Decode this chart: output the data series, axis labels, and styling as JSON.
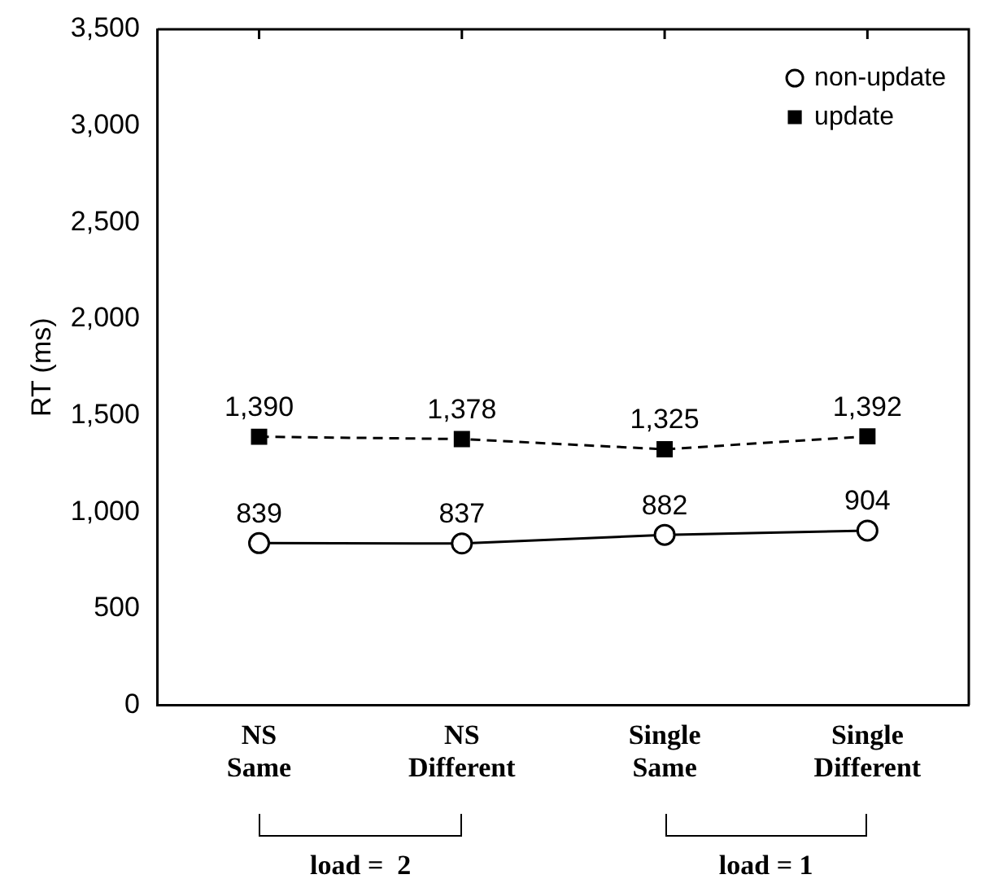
{
  "chart_data": {
    "type": "line",
    "ylabel": "RT (ms)",
    "categories": [
      "NS\nSame",
      "NS\nDifferent",
      "Single\nSame",
      "Single\nDifferent"
    ],
    "series": [
      {
        "name": "non-update",
        "color": "#000000",
        "marker": "circle",
        "line_style": "solid",
        "values": [
          839,
          837,
          882,
          904
        ],
        "value_labels": [
          "839",
          "837",
          "882",
          "904"
        ]
      },
      {
        "name": "update",
        "color": "#000000",
        "marker": "square",
        "line_style": "dashed",
        "values": [
          1390,
          1378,
          1325,
          1392
        ],
        "value_labels": [
          "1,390",
          "1,378",
          "1,325",
          "1,392"
        ]
      }
    ],
    "ylim": [
      0,
      3500
    ],
    "yticks": [
      {
        "value": 0,
        "label": "0"
      },
      {
        "value": 500,
        "label": "500"
      },
      {
        "value": 1000,
        "label": "1,000"
      },
      {
        "value": 1500,
        "label": "1,500"
      },
      {
        "value": 2000,
        "label": "2,000"
      },
      {
        "value": 2500,
        "label": "2,500"
      },
      {
        "value": 3000,
        "label": "3,000"
      },
      {
        "value": 3500,
        "label": "3,500"
      }
    ],
    "grid": false,
    "legend": "top right",
    "annotations": [
      "load =  2",
      "load = 1"
    ]
  }
}
